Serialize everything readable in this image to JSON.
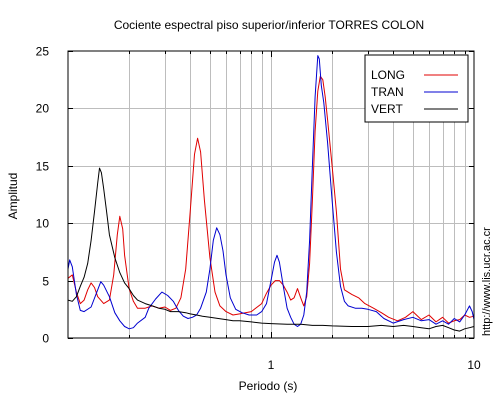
{
  "chart_data": {
    "type": "line",
    "title": "Cociente espectral piso superior/inferior  TORRES COLON",
    "xlabel": "Periodo (s)",
    "ylabel": "Amplitud",
    "x_scale": "log",
    "xlim": [
      0.1,
      10
    ],
    "ylim": [
      0,
      25
    ],
    "x_tick_labels": [
      {
        "value": 1,
        "label": "1"
      },
      {
        "value": 10,
        "label": "10"
      }
    ],
    "y_ticks": [
      0,
      5,
      10,
      15,
      20,
      25
    ],
    "grid": true,
    "legend_position": "top-right",
    "series": [
      {
        "name": "LONG",
        "color": "#e00000",
        "points": [
          [
            0.1,
            5.2
          ],
          [
            0.105,
            5.5
          ],
          [
            0.11,
            4.0
          ],
          [
            0.115,
            3.0
          ],
          [
            0.12,
            3.3
          ],
          [
            0.125,
            4.2
          ],
          [
            0.13,
            4.8
          ],
          [
            0.135,
            4.4
          ],
          [
            0.14,
            3.6
          ],
          [
            0.15,
            3.0
          ],
          [
            0.16,
            3.3
          ],
          [
            0.168,
            5.5
          ],
          [
            0.175,
            9.0
          ],
          [
            0.18,
            10.6
          ],
          [
            0.186,
            9.5
          ],
          [
            0.19,
            7.2
          ],
          [
            0.2,
            4.3
          ],
          [
            0.21,
            3.2
          ],
          [
            0.22,
            2.6
          ],
          [
            0.24,
            2.6
          ],
          [
            0.26,
            2.8
          ],
          [
            0.28,
            2.6
          ],
          [
            0.3,
            2.7
          ],
          [
            0.32,
            2.4
          ],
          [
            0.34,
            2.6
          ],
          [
            0.36,
            3.5
          ],
          [
            0.38,
            6.0
          ],
          [
            0.4,
            11.0
          ],
          [
            0.42,
            16.0
          ],
          [
            0.435,
            17.4
          ],
          [
            0.45,
            16.2
          ],
          [
            0.47,
            12.0
          ],
          [
            0.5,
            7.0
          ],
          [
            0.53,
            4.0
          ],
          [
            0.56,
            2.8
          ],
          [
            0.6,
            2.3
          ],
          [
            0.65,
            2.0
          ],
          [
            0.7,
            2.1
          ],
          [
            0.8,
            2.3
          ],
          [
            0.9,
            3.0
          ],
          [
            0.95,
            3.9
          ],
          [
            1.0,
            4.6
          ],
          [
            1.05,
            5.0
          ],
          [
            1.1,
            5.0
          ],
          [
            1.15,
            4.6
          ],
          [
            1.2,
            4.0
          ],
          [
            1.25,
            3.3
          ],
          [
            1.3,
            3.5
          ],
          [
            1.35,
            4.3
          ],
          [
            1.4,
            3.5
          ],
          [
            1.45,
            2.8
          ],
          [
            1.5,
            3.6
          ],
          [
            1.55,
            6.5
          ],
          [
            1.6,
            12.0
          ],
          [
            1.65,
            18.0
          ],
          [
            1.7,
            21.5
          ],
          [
            1.75,
            22.8
          ],
          [
            1.8,
            22.5
          ],
          [
            1.85,
            21.0
          ],
          [
            1.9,
            19.0
          ],
          [
            2.0,
            15.0
          ],
          [
            2.1,
            11.0
          ],
          [
            2.2,
            6.0
          ],
          [
            2.3,
            4.2
          ],
          [
            2.5,
            3.8
          ],
          [
            2.7,
            3.5
          ],
          [
            2.9,
            3.0
          ],
          [
            3.2,
            2.6
          ],
          [
            3.5,
            2.2
          ],
          [
            3.8,
            1.8
          ],
          [
            4.2,
            1.5
          ],
          [
            4.6,
            1.8
          ],
          [
            5.0,
            2.3
          ],
          [
            5.5,
            1.6
          ],
          [
            6.0,
            2.0
          ],
          [
            6.5,
            1.4
          ],
          [
            7.0,
            1.8
          ],
          [
            7.5,
            1.3
          ],
          [
            8.0,
            1.5
          ],
          [
            8.5,
            1.6
          ],
          [
            9.0,
            2.0
          ],
          [
            9.5,
            1.8
          ],
          [
            10.0,
            1.9
          ]
        ]
      },
      {
        "name": "TRAN",
        "color": "#0000d0",
        "points": [
          [
            0.1,
            6.0
          ],
          [
            0.102,
            6.8
          ],
          [
            0.105,
            6.2
          ],
          [
            0.11,
            3.8
          ],
          [
            0.115,
            2.4
          ],
          [
            0.12,
            2.3
          ],
          [
            0.13,
            2.7
          ],
          [
            0.14,
            4.2
          ],
          [
            0.145,
            4.9
          ],
          [
            0.15,
            4.6
          ],
          [
            0.16,
            3.6
          ],
          [
            0.17,
            2.2
          ],
          [
            0.18,
            1.5
          ],
          [
            0.19,
            1.0
          ],
          [
            0.2,
            0.8
          ],
          [
            0.21,
            0.9
          ],
          [
            0.22,
            1.3
          ],
          [
            0.24,
            1.8
          ],
          [
            0.25,
            2.6
          ],
          [
            0.27,
            3.4
          ],
          [
            0.29,
            4.0
          ],
          [
            0.31,
            3.7
          ],
          [
            0.33,
            3.2
          ],
          [
            0.35,
            2.4
          ],
          [
            0.37,
            1.9
          ],
          [
            0.39,
            1.7
          ],
          [
            0.41,
            1.8
          ],
          [
            0.43,
            2.0
          ],
          [
            0.45,
            2.6
          ],
          [
            0.48,
            4.0
          ],
          [
            0.5,
            6.0
          ],
          [
            0.52,
            8.5
          ],
          [
            0.54,
            9.6
          ],
          [
            0.56,
            9.0
          ],
          [
            0.58,
            7.6
          ],
          [
            0.6,
            5.5
          ],
          [
            0.63,
            3.5
          ],
          [
            0.67,
            2.5
          ],
          [
            0.72,
            2.2
          ],
          [
            0.78,
            2.0
          ],
          [
            0.85,
            2.0
          ],
          [
            0.9,
            2.3
          ],
          [
            0.95,
            3.0
          ],
          [
            1.0,
            5.0
          ],
          [
            1.04,
            6.6
          ],
          [
            1.07,
            7.2
          ],
          [
            1.1,
            6.6
          ],
          [
            1.15,
            4.5
          ],
          [
            1.2,
            2.6
          ],
          [
            1.25,
            1.8
          ],
          [
            1.3,
            1.2
          ],
          [
            1.35,
            1.0
          ],
          [
            1.4,
            1.2
          ],
          [
            1.45,
            2.0
          ],
          [
            1.5,
            4.0
          ],
          [
            1.55,
            8.5
          ],
          [
            1.6,
            15.0
          ],
          [
            1.65,
            21.0
          ],
          [
            1.7,
            24.6
          ],
          [
            1.73,
            24.3
          ],
          [
            1.77,
            22.0
          ],
          [
            1.82,
            20.5
          ],
          [
            1.9,
            17.0
          ],
          [
            2.0,
            12.0
          ],
          [
            2.1,
            7.5
          ],
          [
            2.2,
            4.5
          ],
          [
            2.3,
            3.2
          ],
          [
            2.4,
            2.8
          ],
          [
            2.6,
            2.6
          ],
          [
            2.8,
            2.6
          ],
          [
            3.0,
            2.5
          ],
          [
            3.3,
            2.3
          ],
          [
            3.6,
            1.7
          ],
          [
            4.0,
            1.3
          ],
          [
            4.5,
            1.6
          ],
          [
            5.0,
            1.8
          ],
          [
            5.5,
            1.5
          ],
          [
            6.0,
            1.6
          ],
          [
            6.5,
            1.2
          ],
          [
            7.0,
            1.5
          ],
          [
            7.5,
            1.2
          ],
          [
            8.0,
            1.7
          ],
          [
            8.5,
            1.4
          ],
          [
            9.0,
            2.0
          ],
          [
            9.5,
            2.8
          ],
          [
            9.8,
            2.3
          ],
          [
            10.0,
            1.6
          ]
        ]
      },
      {
        "name": "VERT",
        "color": "#000000",
        "points": [
          [
            0.1,
            3.3
          ],
          [
            0.105,
            3.2
          ],
          [
            0.11,
            3.6
          ],
          [
            0.115,
            4.5
          ],
          [
            0.12,
            5.3
          ],
          [
            0.125,
            6.5
          ],
          [
            0.13,
            8.5
          ],
          [
            0.135,
            11.0
          ],
          [
            0.14,
            13.5
          ],
          [
            0.143,
            14.8
          ],
          [
            0.146,
            14.4
          ],
          [
            0.15,
            13.0
          ],
          [
            0.155,
            11.0
          ],
          [
            0.16,
            9.0
          ],
          [
            0.17,
            7.0
          ],
          [
            0.18,
            5.7
          ],
          [
            0.19,
            4.8
          ],
          [
            0.2,
            4.3
          ],
          [
            0.21,
            3.7
          ],
          [
            0.22,
            3.3
          ],
          [
            0.24,
            3.0
          ],
          [
            0.26,
            2.8
          ],
          [
            0.28,
            2.6
          ],
          [
            0.3,
            2.5
          ],
          [
            0.32,
            2.3
          ],
          [
            0.35,
            2.3
          ],
          [
            0.38,
            2.2
          ],
          [
            0.4,
            2.1
          ],
          [
            0.43,
            2.0
          ],
          [
            0.46,
            1.9
          ],
          [
            0.5,
            1.8
          ],
          [
            0.55,
            1.7
          ],
          [
            0.6,
            1.6
          ],
          [
            0.65,
            1.5
          ],
          [
            0.7,
            1.5
          ],
          [
            0.8,
            1.4
          ],
          [
            0.9,
            1.3
          ],
          [
            1.0,
            1.25
          ],
          [
            1.2,
            1.2
          ],
          [
            1.4,
            1.2
          ],
          [
            1.6,
            1.1
          ],
          [
            1.8,
            1.1
          ],
          [
            2.0,
            1.05
          ],
          [
            2.5,
            1.0
          ],
          [
            3.0,
            1.0
          ],
          [
            3.5,
            1.1
          ],
          [
            4.0,
            1.0
          ],
          [
            4.5,
            1.1
          ],
          [
            5.0,
            1.0
          ],
          [
            5.5,
            0.9
          ],
          [
            6.0,
            0.8
          ],
          [
            6.5,
            1.0
          ],
          [
            7.0,
            1.1
          ],
          [
            7.5,
            0.9
          ],
          [
            8.0,
            0.7
          ],
          [
            8.5,
            0.6
          ],
          [
            9.0,
            0.8
          ],
          [
            9.5,
            0.9
          ],
          [
            10.0,
            1.0
          ]
        ]
      }
    ]
  },
  "side_url": "http://www.lis.ucr.ac.cr"
}
